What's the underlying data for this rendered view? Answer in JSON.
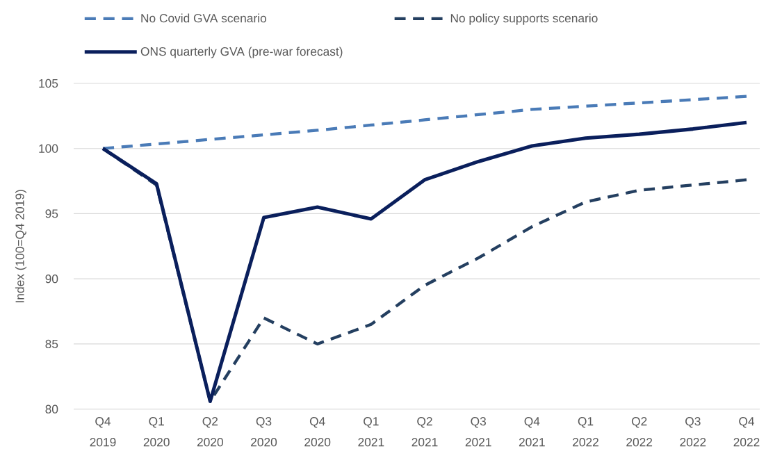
{
  "chart_data": {
    "type": "line",
    "categories": [
      "Q4 2019",
      "Q1 2020",
      "Q2 2020",
      "Q3 2020",
      "Q4 2020",
      "Q1 2021",
      "Q2 2021",
      "Q3 2021",
      "Q4 2021",
      "Q1 2022",
      "Q2 2022",
      "Q3 2022",
      "Q4 2022"
    ],
    "series": [
      {
        "name": "No Covid GVA scenario",
        "color": "#4a7bb7",
        "line_style": "dashed",
        "values": [
          100,
          100.35,
          100.7,
          101.05,
          101.4,
          101.8,
          102.2,
          102.6,
          103.0,
          103.25,
          103.5,
          103.75,
          104.0
        ]
      },
      {
        "name": "No policy supports scenario",
        "color": "#243f60",
        "line_style": "dashed",
        "values": [
          100,
          97.2,
          80.6,
          87.0,
          85.0,
          86.5,
          89.5,
          91.6,
          94.0,
          95.9,
          96.8,
          97.2,
          97.6
        ]
      },
      {
        "name": "ONS quarterly GVA (pre-war forecast)",
        "color": "#0a1f5c",
        "line_style": "solid",
        "values": [
          100,
          97.3,
          80.6,
          94.7,
          95.5,
          94.6,
          97.6,
          99.0,
          100.2,
          100.8,
          101.1,
          101.5,
          102.0
        ]
      }
    ],
    "ylabel": "Index (100=Q4 2019)",
    "ylim": [
      80,
      105
    ],
    "yticks": [
      80,
      85,
      90,
      95,
      100,
      105
    ],
    "grid": "y",
    "legend": "top"
  }
}
